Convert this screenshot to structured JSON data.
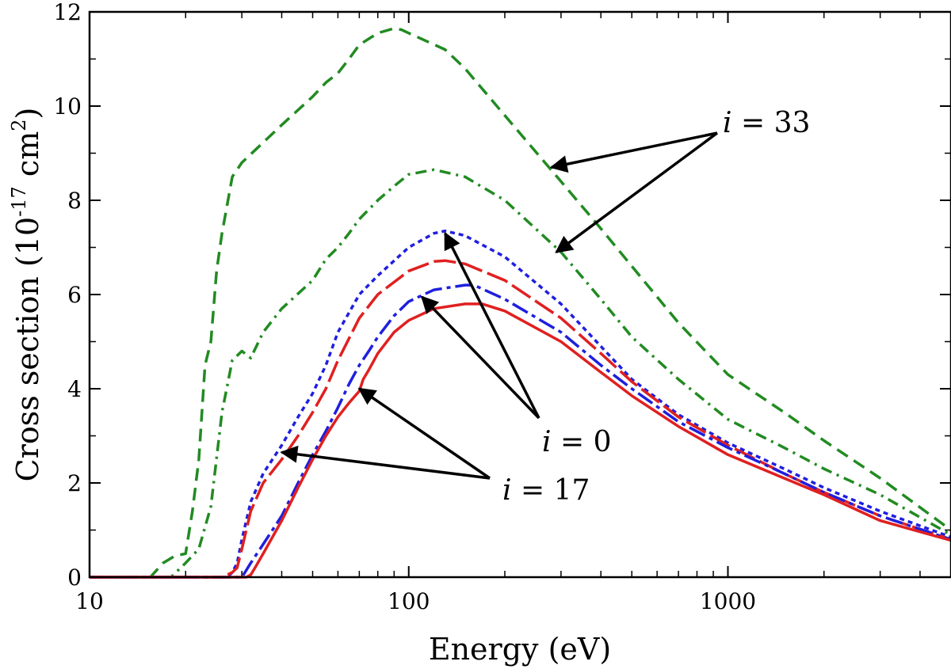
{
  "chart_data": {
    "type": "line",
    "xscale": "log",
    "xlim": [
      10,
      5000
    ],
    "ylim": [
      0,
      12
    ],
    "xticks": [
      10,
      100,
      1000
    ],
    "xtick_labels": [
      "10",
      "100",
      "1000"
    ],
    "yticks": [
      0,
      2,
      4,
      6,
      8,
      10,
      12
    ],
    "ytick_labels": [
      "0",
      "2",
      "4",
      "6",
      "8",
      "10",
      "12"
    ],
    "xlabel": "Energy (eV)",
    "ylabel_main": "Cross section (10",
    "ylabel_sup1": "-17",
    "ylabel_unit": " cm",
    "ylabel_sup2": "2",
    "ylabel_end": ")",
    "grid": false,
    "series": [
      {
        "color": "#228B22",
        "dash": "16,9",
        "x": [
          10,
          15.5,
          17,
          18.5,
          20,
          21,
          22,
          23,
          24,
          25,
          26,
          28,
          30,
          40,
          50,
          55,
          60,
          65,
          70,
          80,
          90,
          95,
          100,
          130,
          150,
          200,
          300,
          400,
          500,
          700,
          1000,
          1500,
          2000,
          3000,
          5000
        ],
        "y": [
          0,
          0,
          0.3,
          0.45,
          0.5,
          1.4,
          2.5,
          4.5,
          5.0,
          6.5,
          7.3,
          8.5,
          8.8,
          9.6,
          10.2,
          10.5,
          10.7,
          11.0,
          11.3,
          11.55,
          11.65,
          11.62,
          11.55,
          11.2,
          10.8,
          9.8,
          8.4,
          7.4,
          6.6,
          5.4,
          4.3,
          3.5,
          2.9,
          2.1,
          1.0
        ]
      },
      {
        "color": "#228B22",
        "dash": "14,7,3,7",
        "x": [
          10,
          18,
          20,
          22,
          24,
          26,
          28,
          30,
          32,
          35,
          40,
          50,
          55,
          60,
          65,
          70,
          80,
          90,
          100,
          120,
          150,
          200,
          300,
          400,
          500,
          700,
          1000,
          1500,
          2000,
          3000,
          5000
        ],
        "y": [
          0,
          0,
          0.3,
          0.6,
          1.5,
          3.5,
          4.6,
          4.8,
          4.65,
          5.2,
          5.7,
          6.3,
          6.75,
          7.0,
          7.3,
          7.6,
          8.0,
          8.3,
          8.55,
          8.65,
          8.5,
          8.0,
          6.9,
          5.9,
          5.1,
          4.2,
          3.35,
          2.75,
          2.3,
          1.75,
          0.9
        ]
      },
      {
        "color": "#1f1fdf",
        "dash": "6,5",
        "x": [
          10,
          27,
          28,
          29,
          30,
          32,
          35,
          40,
          45,
          50,
          55,
          60,
          70,
          80,
          100,
          120,
          130,
          150,
          200,
          300,
          400,
          500,
          700,
          1000,
          1500,
          2000,
          3000,
          5000
        ],
        "y": [
          0,
          0,
          0.1,
          0.3,
          0.8,
          1.6,
          2.2,
          2.8,
          3.4,
          3.9,
          4.5,
          5.2,
          6.0,
          6.4,
          7.0,
          7.3,
          7.35,
          7.25,
          6.8,
          5.8,
          4.9,
          4.2,
          3.45,
          2.85,
          2.3,
          1.9,
          1.4,
          0.85
        ]
      },
      {
        "color": "#e02020",
        "dash": "28,7",
        "x": [
          10,
          26,
          28,
          29,
          30,
          32,
          35,
          40,
          45,
          50,
          55,
          60,
          70,
          80,
          100,
          120,
          130,
          150,
          200,
          300,
          400,
          500,
          700,
          1000,
          1500,
          2000,
          3000,
          5000
        ],
        "y": [
          0,
          0,
          0.1,
          0.2,
          0.6,
          1.4,
          2.0,
          2.5,
          3.0,
          3.5,
          4.0,
          4.6,
          5.5,
          6.0,
          6.5,
          6.7,
          6.72,
          6.65,
          6.3,
          5.5,
          4.75,
          4.15,
          3.4,
          2.8,
          2.2,
          1.8,
          1.3,
          0.8
        ]
      },
      {
        "color": "#1f1fdf",
        "dash": "22,6,5,6",
        "x": [
          10,
          30,
          31,
          32,
          35,
          40,
          45,
          50,
          55,
          60,
          65,
          70,
          75,
          80,
          90,
          100,
          120,
          150,
          160,
          200,
          300,
          400,
          500,
          700,
          1000,
          1500,
          2000,
          3000,
          5000
        ],
        "y": [
          0,
          0,
          0.15,
          0.3,
          0.7,
          1.3,
          2.0,
          2.6,
          3.1,
          3.6,
          4.1,
          4.5,
          4.8,
          5.1,
          5.55,
          5.85,
          6.1,
          6.2,
          6.2,
          5.9,
          5.2,
          4.5,
          4.0,
          3.3,
          2.75,
          2.2,
          1.8,
          1.3,
          0.8
        ]
      },
      {
        "color": "#e02020",
        "dash": "",
        "x": [
          10,
          31,
          32,
          33,
          35,
          40,
          45,
          50,
          55,
          60,
          65,
          70,
          72,
          75,
          80,
          90,
          100,
          120,
          150,
          170,
          200,
          300,
          400,
          500,
          700,
          1000,
          1500,
          2000,
          3000,
          5000
        ],
        "y": [
          0,
          0,
          0.05,
          0.2,
          0.5,
          1.2,
          1.9,
          2.5,
          3.0,
          3.4,
          3.7,
          3.95,
          4.2,
          4.4,
          4.75,
          5.2,
          5.45,
          5.7,
          5.8,
          5.8,
          5.65,
          5.0,
          4.35,
          3.85,
          3.2,
          2.6,
          2.1,
          1.75,
          1.2,
          0.78
        ]
      }
    ],
    "annotations": [
      {
        "italic": "i",
        "text": " = 33",
        "arrow_targets": [
          [
            280,
            8.7
          ],
          [
            290,
            6.9
          ]
        ]
      },
      {
        "italic": "i",
        "text": " = 0",
        "arrow_targets": [
          [
            130,
            7.3
          ],
          [
            110,
            5.95
          ]
        ]
      },
      {
        "italic": "i",
        "text": " = 17",
        "arrow_targets": [
          [
            40,
            2.65
          ],
          [
            70,
            4.0
          ]
        ]
      }
    ]
  }
}
